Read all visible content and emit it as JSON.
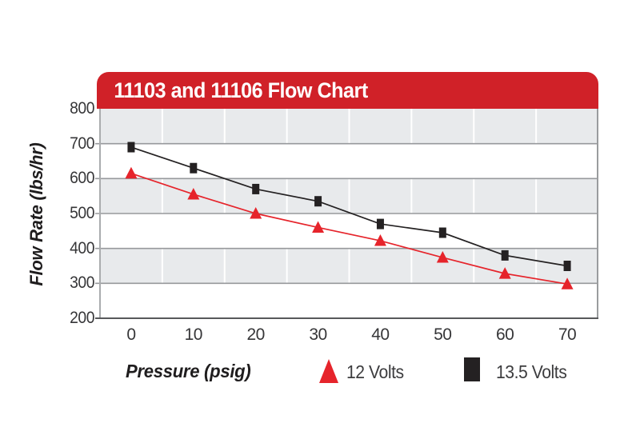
{
  "banner": {
    "title": "11103 and 11106 Flow Chart"
  },
  "colors": {
    "banner_red": "#d02128",
    "series_red": "#e6242b",
    "series_black": "#242122",
    "band_gray": "#e8eaec",
    "band_white": "#ffffff",
    "gridline_gray": "#97999c",
    "separator_white": "#ffffff"
  },
  "y_axis": {
    "title": "Flow Rate (lbs/hr)",
    "ticks": [
      "800",
      "700",
      "600",
      "500",
      "400",
      "300",
      "200"
    ]
  },
  "x_axis": {
    "title": "Pressure (psig)",
    "ticks": [
      "0",
      "10",
      "20",
      "30",
      "40",
      "50",
      "60",
      "70"
    ]
  },
  "legend": {
    "items": [
      {
        "label": "12 Volts"
      },
      {
        "label": "13.5 Volts"
      }
    ]
  },
  "chart_data": {
    "type": "line",
    "title": "11103 and 11106 Flow Chart",
    "xlabel": "Pressure (psig)",
    "ylabel": "Flow Rate (lbs/hr)",
    "x": [
      0,
      10,
      20,
      30,
      40,
      50,
      60,
      70
    ],
    "ylim": [
      200,
      800
    ],
    "ytick_interval": 100,
    "grid": "horizontal gridlines every 100 with alternating gray/white bands; white vertical separators every 10 psig",
    "legend_position": "bottom",
    "series": [
      {
        "name": "12 Volts",
        "marker": "triangle",
        "color": "#e6242b",
        "values": [
          615,
          555,
          500,
          460,
          422,
          374,
          328,
          298
        ]
      },
      {
        "name": "13.5 Volts",
        "marker": "square",
        "color": "#242122",
        "values": [
          690,
          630,
          570,
          535,
          470,
          445,
          380,
          350
        ]
      }
    ]
  }
}
